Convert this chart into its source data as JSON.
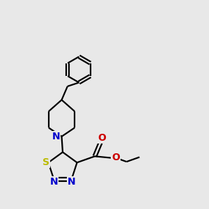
{
  "bg_color": "#e8e8e8",
  "bond_color": "#000000",
  "bond_width": 1.6,
  "atom_colors": {
    "N": "#0000cc",
    "S": "#bbbb00",
    "O": "#cc0000",
    "C": "#000000"
  },
  "font_size_atom": 10,
  "canvas_xlim": [
    0,
    10
  ],
  "canvas_ylim": [
    0,
    10
  ]
}
